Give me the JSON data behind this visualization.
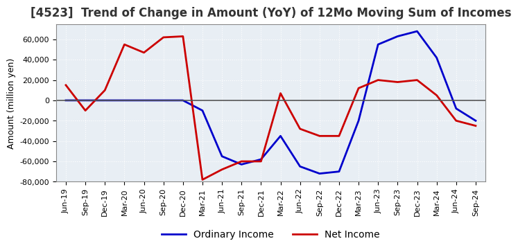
{
  "title": "[4523]  Trend of Change in Amount (YoY) of 12Mo Moving Sum of Incomes",
  "ylabel": "Amount (million yen)",
  "ylim": [
    -80000,
    75000
  ],
  "yticks": [
    -80000,
    -60000,
    -40000,
    -20000,
    0,
    20000,
    40000,
    60000
  ],
  "plot_bg_color": "#e8eef4",
  "fig_bg_color": "#ffffff",
  "grid_color": "#ffffff",
  "dates": [
    "Jun-19",
    "Sep-19",
    "Dec-19",
    "Mar-20",
    "Jun-20",
    "Sep-20",
    "Dec-20",
    "Mar-21",
    "Jun-21",
    "Sep-21",
    "Dec-21",
    "Mar-22",
    "Jun-22",
    "Sep-22",
    "Dec-22",
    "Mar-23",
    "Jun-23",
    "Sep-23",
    "Dec-23",
    "Mar-24",
    "Jun-24",
    "Sep-24"
  ],
  "ordinary_income": [
    0,
    0,
    0,
    0,
    0,
    0,
    0,
    -10000,
    -55000,
    -63000,
    -58000,
    -35000,
    -65000,
    -72000,
    -70000,
    -20000,
    55000,
    63000,
    68000,
    42000,
    -8000,
    -20000
  ],
  "net_income": [
    15000,
    -10000,
    10000,
    55000,
    47000,
    62000,
    63000,
    -78000,
    -68000,
    -60000,
    -60000,
    7000,
    -28000,
    -35000,
    -35000,
    12000,
    20000,
    18000,
    20000,
    5000,
    -20000,
    -25000
  ],
  "ordinary_income_color": "#0000cc",
  "net_income_color": "#cc0000",
  "line_width": 2.0,
  "title_fontsize": 12,
  "tick_fontsize": 8,
  "legend_fontsize": 10
}
